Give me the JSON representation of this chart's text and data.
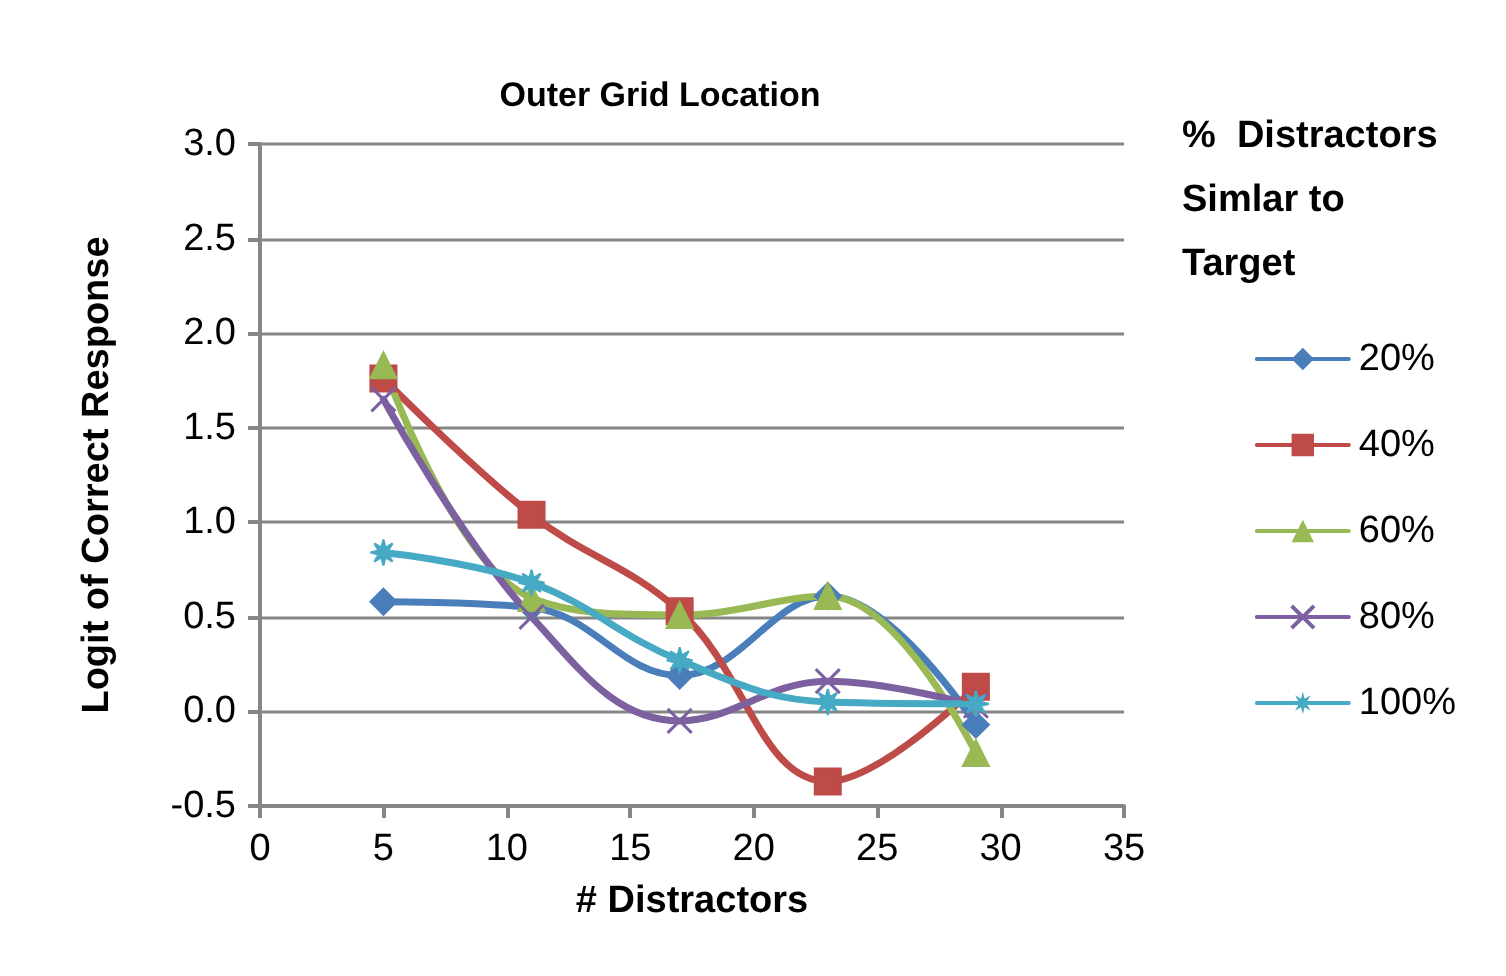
{
  "chart_data": {
    "type": "line",
    "title": "Outer Grid Location",
    "xlabel": "# Distractors",
    "ylabel": "Logit of Correct Response",
    "legend_title": "%  Distractors Simlar to Target",
    "x": [
      5,
      11,
      17,
      23,
      29
    ],
    "series": [
      {
        "name": "20%",
        "color": "#4a7ebb",
        "marker": "diamond",
        "values": [
          0.58,
          0.55,
          0.19,
          0.61,
          -0.07
        ]
      },
      {
        "name": "40%",
        "color": "#be4b48",
        "marker": "square",
        "values": [
          1.76,
          1.04,
          0.53,
          -0.37,
          0.13
        ]
      },
      {
        "name": "60%",
        "color": "#98b954",
        "marker": "triangle",
        "values": [
          1.83,
          0.6,
          0.51,
          0.61,
          -0.22
        ]
      },
      {
        "name": "80%",
        "color": "#7d60a0",
        "marker": "cross",
        "values": [
          1.65,
          0.5,
          -0.05,
          0.16,
          0.03
        ]
      },
      {
        "name": "100%",
        "color": "#46aac5",
        "marker": "star",
        "values": [
          0.84,
          0.68,
          0.27,
          0.05,
          0.04
        ]
      }
    ],
    "xlim": [
      0,
      35
    ],
    "xticks": [
      0,
      5,
      10,
      15,
      20,
      25,
      30,
      35
    ],
    "ylim": [
      -0.5,
      3.0
    ],
    "yticks": [
      -0.5,
      {
        "value": 0,
        "label": "0.0"
      },
      0.5,
      {
        "value": 1,
        "label": "1.0"
      },
      1.5,
      {
        "value": 2,
        "label": "2.0"
      },
      2.5,
      {
        "value": 3,
        "label": "3.0"
      }
    ],
    "grid": "y",
    "legend": "right",
    "line_style": "solid"
  }
}
